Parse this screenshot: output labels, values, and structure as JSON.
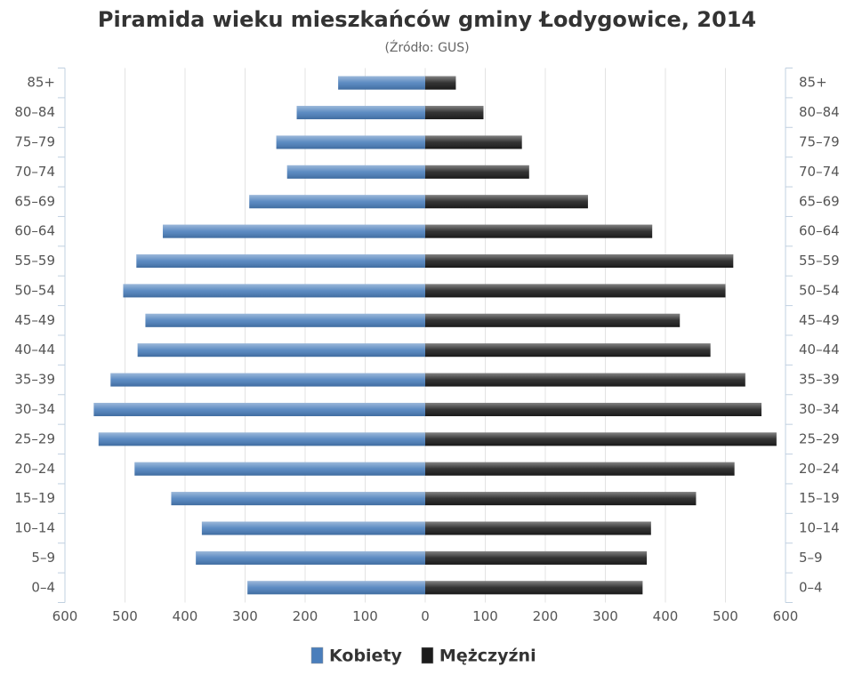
{
  "chart_data": {
    "type": "pyramid",
    "title": "Piramida wieku mieszkańców gminy Łodygowice, 2014",
    "subtitle": "(Źródło: GUS)",
    "categories": [
      "85+",
      "80–84",
      "75–79",
      "70–74",
      "65–69",
      "60–64",
      "55–59",
      "50–54",
      "45–49",
      "40–44",
      "35–39",
      "30–34",
      "25–29",
      "20–24",
      "15–19",
      "10–14",
      "5–9",
      "0–4"
    ],
    "series": [
      {
        "name": "Kobiety",
        "color": "#4a7ebb",
        "values": [
          -145,
          -214,
          -248,
          -230,
          -293,
          -437,
          -481,
          -503,
          -466,
          -479,
          -524,
          -552,
          -544,
          -484,
          -423,
          -372,
          -382,
          -296
        ]
      },
      {
        "name": "Mężczyźni",
        "color": "#1c1c1c",
        "values": [
          51,
          97,
          161,
          173,
          271,
          378,
          513,
          500,
          424,
          475,
          533,
          560,
          585,
          515,
          451,
          376,
          369,
          362
        ]
      }
    ],
    "xlim": [
      -600,
      600
    ],
    "xticks": [
      {
        "value": -600,
        "label": "600"
      },
      {
        "value": -500,
        "label": "500"
      },
      {
        "value": -400,
        "label": "400"
      },
      {
        "value": -300,
        "label": "300"
      },
      {
        "value": -200,
        "label": "200"
      },
      {
        "value": -100,
        "label": "100"
      },
      0,
      100,
      200,
      300,
      400,
      500,
      600
    ],
    "grid": true
  }
}
